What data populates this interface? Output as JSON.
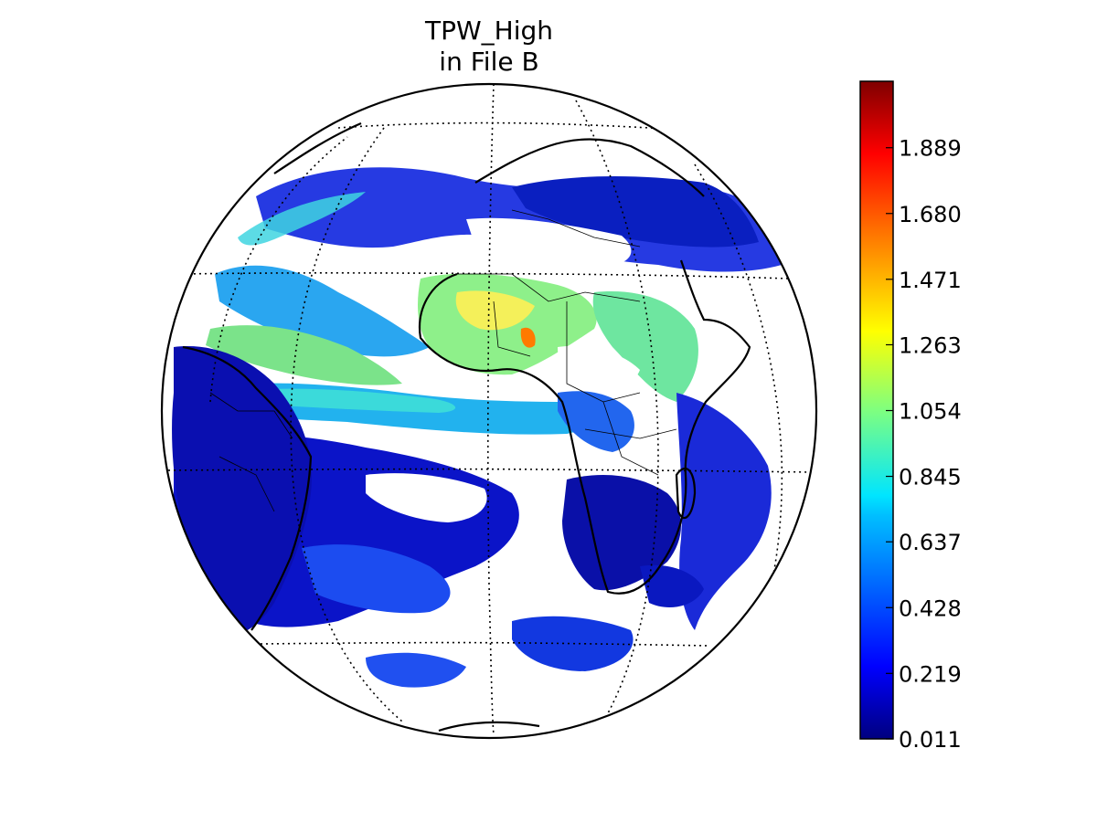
{
  "title": {
    "line1": "TPW_High",
    "line2": "in File B"
  },
  "colorbar": {
    "colormap": "jet",
    "range": [
      0.011,
      2.1
    ],
    "ticks": [
      {
        "value": 0.011,
        "label": "0.011"
      },
      {
        "value": 0.219,
        "label": "0.219"
      },
      {
        "value": 0.428,
        "label": "0.428"
      },
      {
        "value": 0.637,
        "label": "0.637"
      },
      {
        "value": 0.845,
        "label": "0.845"
      },
      {
        "value": 1.054,
        "label": "1.054"
      },
      {
        "value": 1.263,
        "label": "1.263"
      },
      {
        "value": 1.471,
        "label": "1.471"
      },
      {
        "value": 1.68,
        "label": "1.680"
      },
      {
        "value": 1.889,
        "label": "1.889"
      }
    ]
  },
  "map": {
    "projection": "orthographic",
    "center": "Atlantic / Africa",
    "graticule": "dotted",
    "colors": {
      "ocean_background": "#ffffff",
      "low": "#0000c8",
      "mid_low": "#1e64ff",
      "mid": "#2ad6e6",
      "mid_high": "#7cff7c",
      "high": "#ffd200",
      "very_high": "#ff3000"
    }
  }
}
